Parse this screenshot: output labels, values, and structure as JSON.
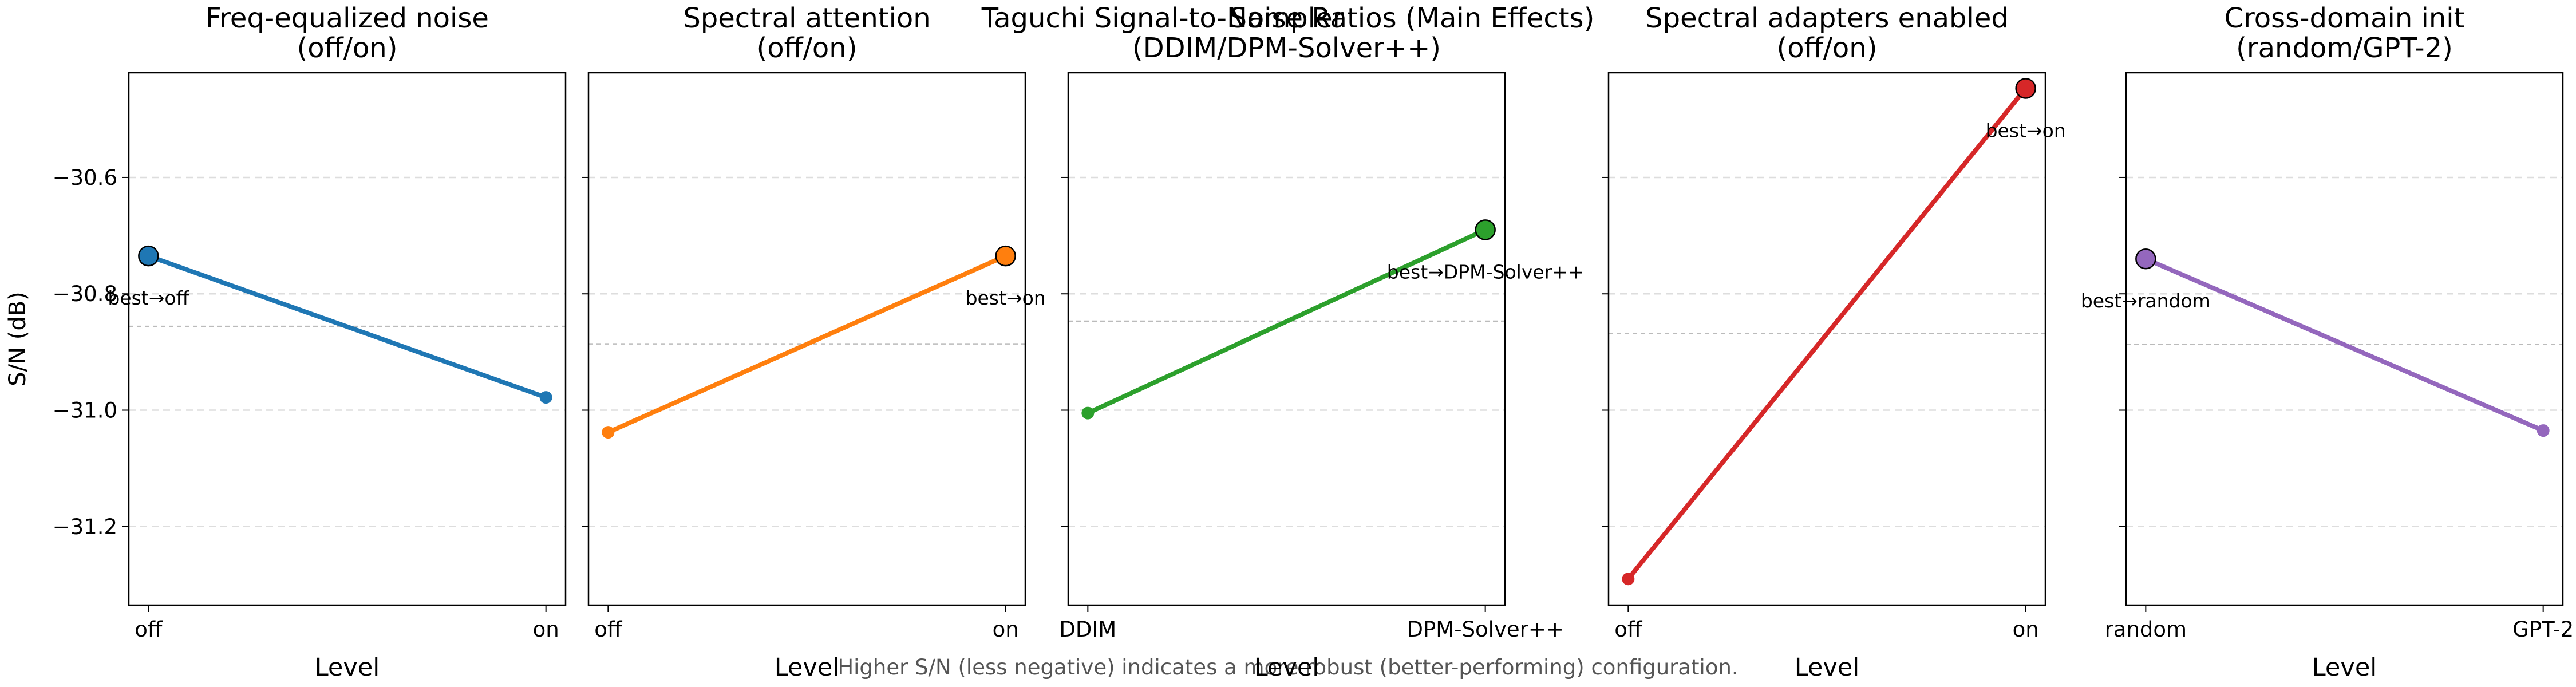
{
  "figure": {
    "suptitle": "Taguchi Signal-to-Noise Ratios (Main Effects)",
    "footnote": "Higher S/N (less negative) indicates a more robust (better-performing) configuration."
  },
  "chart_data": [
    {
      "type": "line",
      "title_line1": "Freq-equalized noise",
      "title_line2": "(off/on)",
      "xlabel": "Level",
      "ylabel": "S/N (dB)",
      "categories": [
        "off",
        "on"
      ],
      "values": [
        -30.735,
        -30.978
      ],
      "mean": -30.856,
      "best_index": 0,
      "best_label": "best→off",
      "color": "#1f77b4",
      "ylim": [
        -31.335,
        -30.42
      ],
      "yticks": [
        -31.2,
        -31.0,
        -30.8,
        -30.6
      ],
      "ytick_labels": [
        "−31.2",
        "−31.0",
        "−30.8",
        "−30.6"
      ]
    },
    {
      "type": "line",
      "title_line1": "Spectral attention",
      "title_line2": "(off/on)",
      "xlabel": "Level",
      "ylabel": "",
      "categories": [
        "off",
        "on"
      ],
      "values": [
        -31.038,
        -30.735
      ],
      "mean": -30.886,
      "best_index": 1,
      "best_label": "best→on",
      "color": "#ff7f0e",
      "ylim": [
        -31.335,
        -30.42
      ],
      "yticks": [
        -31.2,
        -31.0,
        -30.8,
        -30.6
      ],
      "ytick_labels": []
    },
    {
      "type": "line",
      "title_line1": "Sampler",
      "title_line2": "(DDIM/DPM-Solver++)",
      "xlabel": "Level",
      "ylabel": "",
      "categories": [
        "DDIM",
        "DPM-Solver++"
      ],
      "values": [
        -31.005,
        -30.69
      ],
      "mean": -30.847,
      "best_index": 1,
      "best_label": "best→DPM-Solver++",
      "color": "#2ca02c",
      "ylim": [
        -31.335,
        -30.42
      ],
      "yticks": [
        -31.2,
        -31.0,
        -30.8,
        -30.6
      ],
      "ytick_labels": []
    },
    {
      "type": "line",
      "title_line1": "Spectral adapters enabled",
      "title_line2": "(off/on)",
      "xlabel": "Level",
      "ylabel": "",
      "categories": [
        "off",
        "on"
      ],
      "values": [
        -31.29,
        -30.447
      ],
      "mean": -30.868,
      "best_index": 1,
      "best_label": "best→on",
      "color": "#d62728",
      "ylim": [
        -31.335,
        -30.42
      ],
      "yticks": [
        -31.2,
        -31.0,
        -30.8,
        -30.6
      ],
      "ytick_labels": []
    },
    {
      "type": "line",
      "title_line1": "Cross-domain init",
      "title_line2": "(random/GPT-2)",
      "xlabel": "Level",
      "ylabel": "",
      "categories": [
        "random",
        "GPT-2"
      ],
      "values": [
        -30.74,
        -31.035
      ],
      "mean": -30.887,
      "best_index": 0,
      "best_label": "best→random",
      "color": "#9467bd",
      "ylim": [
        -31.335,
        -30.42
      ],
      "yticks": [
        -31.2,
        -31.0,
        -30.8,
        -30.6
      ],
      "ytick_labels": []
    }
  ]
}
